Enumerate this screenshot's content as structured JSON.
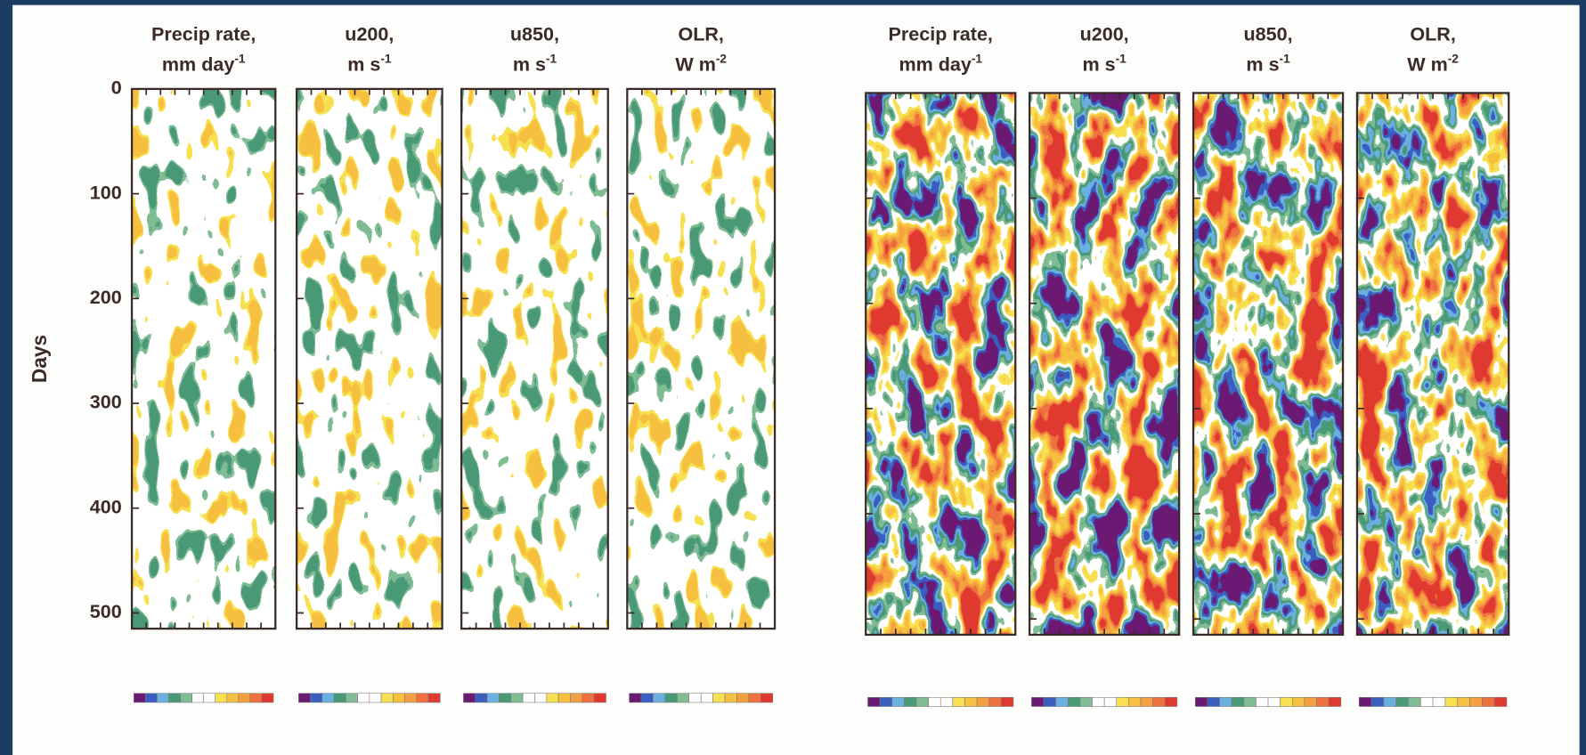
{
  "chart_data": {
    "type": "heatmap",
    "ylabel": "Days",
    "ylim": [
      0,
      515
    ],
    "yticks": [
      0,
      100,
      200,
      300,
      400,
      500
    ],
    "panels": [
      {
        "line1": "Precip rate,",
        "line2": "mm day",
        "sup": "-1"
      },
      {
        "line1": "u200,",
        "line2": "m s",
        "sup": "-1"
      },
      {
        "line1": "u850,",
        "line2": "m s",
        "sup": "-1"
      },
      {
        "line1": "OLR,",
        "line2": "W m",
        "sup": "-2"
      },
      {
        "line1": "Precip rate,",
        "line2": "mm day",
        "sup": "-1"
      },
      {
        "line1": "u200,",
        "line2": "m s",
        "sup": "-1"
      },
      {
        "line1": "u850,",
        "line2": "m s",
        "sup": "-1"
      },
      {
        "line1": "OLR,",
        "line2": "W m",
        "sup": "-2"
      }
    ],
    "colorscale": [
      "#6a1a72",
      "#3a5fc0",
      "#6ab0e0",
      "#4a9a78",
      "#80bc94",
      "#ffffff",
      "#ffffff",
      "#f8e050",
      "#f8c040",
      "#f5a040",
      "#f07040",
      "#e03a30"
    ]
  }
}
